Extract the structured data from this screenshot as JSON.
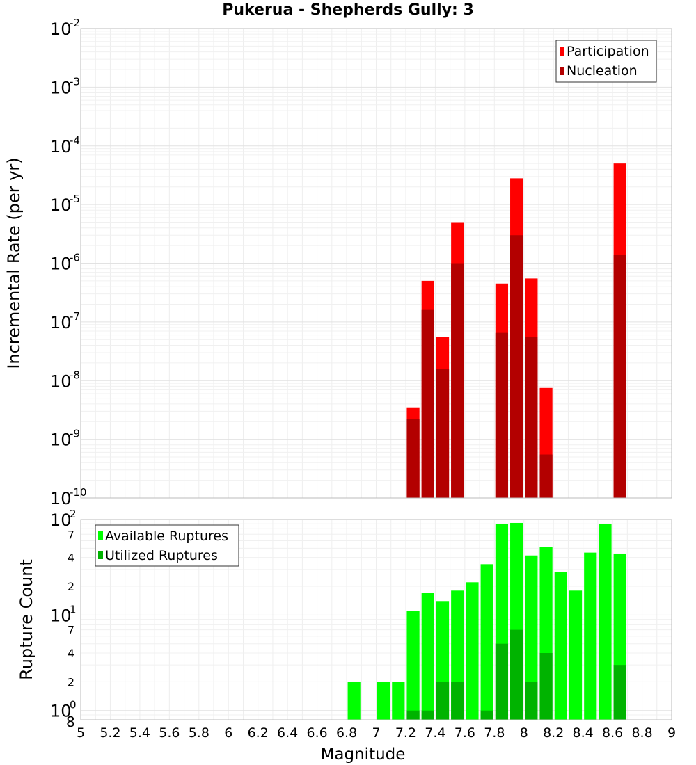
{
  "title": "Pukerua - Shepherds Gully: 3",
  "chart_data": [
    {
      "id": "rate",
      "type": "bar",
      "ylabel": "Incremental Rate (per yr)",
      "xlabel": "",
      "xlim": [
        5,
        9
      ],
      "ylim": [
        1e-10,
        0.01
      ],
      "yscale": "log",
      "y_major_exponents": [
        "-2",
        "-3",
        "-4",
        "-5",
        "-6",
        "-7",
        "-8",
        "-9",
        "-10"
      ],
      "y_major_base": "10",
      "grid": true,
      "legend_position": "top-right",
      "series": [
        {
          "name": "Participation",
          "color": "#ff0000",
          "points": [
            {
              "x": 7.25,
              "y": 3.5e-09
            },
            {
              "x": 7.35,
              "y": 5e-07
            },
            {
              "x": 7.45,
              "y": 5.5e-08
            },
            {
              "x": 7.55,
              "y": 5e-06
            },
            {
              "x": 7.85,
              "y": 4.5e-07
            },
            {
              "x": 7.95,
              "y": 2.8e-05
            },
            {
              "x": 8.05,
              "y": 5.5e-07
            },
            {
              "x": 8.15,
              "y": 7.5e-09
            },
            {
              "x": 8.65,
              "y": 5e-05
            }
          ]
        },
        {
          "name": "Nucleation",
          "color": "#b30000",
          "points": [
            {
              "x": 7.25,
              "y": 2.2e-09
            },
            {
              "x": 7.35,
              "y": 1.6e-07
            },
            {
              "x": 7.45,
              "y": 1.6e-08
            },
            {
              "x": 7.55,
              "y": 1e-06
            },
            {
              "x": 7.85,
              "y": 6.5e-08
            },
            {
              "x": 7.95,
              "y": 3e-06
            },
            {
              "x": 8.05,
              "y": 5.5e-08
            },
            {
              "x": 8.15,
              "y": 5.5e-10
            },
            {
              "x": 8.65,
              "y": 1.4e-06
            }
          ]
        }
      ]
    },
    {
      "id": "count",
      "type": "bar",
      "ylabel": "Rupture Count",
      "xlabel": "Magnitude",
      "xlim": [
        5,
        9
      ],
      "ylim": [
        0.8,
        100
      ],
      "yscale": "log",
      "x_ticks": [
        "5",
        "5.2",
        "5.4",
        "5.6",
        "5.8",
        "6",
        "6.2",
        "6.4",
        "6.6",
        "6.8",
        "7",
        "7.2",
        "7.4",
        "7.6",
        "7.8",
        "8",
        "8.2",
        "8.4",
        "8.6",
        "8.8",
        "9"
      ],
      "y_major_ticks": [
        {
          "value": 100,
          "base": "10",
          "exp": "2"
        },
        {
          "value": 10,
          "base": "10",
          "exp": "1"
        },
        {
          "value": 1,
          "base": "10",
          "exp": "0"
        }
      ],
      "y_minor_labels": [
        {
          "value": 70,
          "label": "7"
        },
        {
          "value": 40,
          "label": "4"
        },
        {
          "value": 20,
          "label": "2"
        },
        {
          "value": 7,
          "label": "7"
        },
        {
          "value": 4,
          "label": "4"
        },
        {
          "value": 2,
          "label": "2"
        }
      ],
      "y_bottom_label": "8",
      "grid": true,
      "legend_position": "top-left",
      "series": [
        {
          "name": "Available Ruptures",
          "color": "#00ff00",
          "points": [
            {
              "x": 6.85,
              "y": 2
            },
            {
              "x": 7.05,
              "y": 2
            },
            {
              "x": 7.15,
              "y": 2
            },
            {
              "x": 7.25,
              "y": 11
            },
            {
              "x": 7.35,
              "y": 17
            },
            {
              "x": 7.45,
              "y": 14
            },
            {
              "x": 7.55,
              "y": 18
            },
            {
              "x": 7.65,
              "y": 22
            },
            {
              "x": 7.75,
              "y": 34
            },
            {
              "x": 7.85,
              "y": 90
            },
            {
              "x": 7.95,
              "y": 92
            },
            {
              "x": 8.05,
              "y": 42
            },
            {
              "x": 8.15,
              "y": 52
            },
            {
              "x": 8.25,
              "y": 28
            },
            {
              "x": 8.35,
              "y": 18
            },
            {
              "x": 8.45,
              "y": 45
            },
            {
              "x": 8.55,
              "y": 90
            },
            {
              "x": 8.65,
              "y": 44
            }
          ]
        },
        {
          "name": "Utilized Ruptures",
          "color": "#00b300",
          "points": [
            {
              "x": 7.25,
              "y": 1
            },
            {
              "x": 7.35,
              "y": 1
            },
            {
              "x": 7.45,
              "y": 2
            },
            {
              "x": 7.55,
              "y": 2
            },
            {
              "x": 7.75,
              "y": 1
            },
            {
              "x": 7.85,
              "y": 5
            },
            {
              "x": 7.95,
              "y": 7
            },
            {
              "x": 8.05,
              "y": 2
            },
            {
              "x": 8.15,
              "y": 4
            },
            {
              "x": 8.65,
              "y": 3
            }
          ]
        }
      ]
    }
  ]
}
